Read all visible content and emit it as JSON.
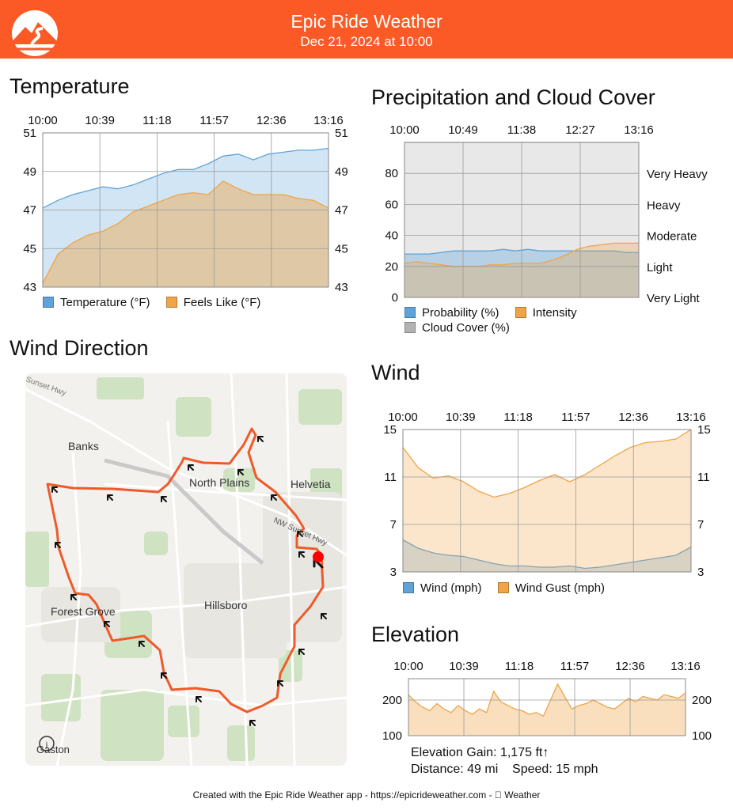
{
  "header": {
    "title": "Epic Ride Weather",
    "date": "Dec 21, 2024 at 10:00",
    "background": "#fb5a26"
  },
  "sections": {
    "temperature": "Temperature",
    "precipitation": "Precipitation and Cloud Cover",
    "wind_direction": "Wind Direction",
    "wind": "Wind",
    "elevation": "Elevation"
  },
  "time_ticks": [
    "10:00",
    "10:39",
    "11:18",
    "11:57",
    "12:36",
    "13:16"
  ],
  "precip_time_ticks": [
    "10:00",
    "10:49",
    "11:38",
    "12:27",
    "13:16"
  ],
  "chart_data": [
    {
      "type": "area",
      "id": "temperature",
      "title": "Temperature",
      "ylim": [
        43,
        51
      ],
      "y_ticks": [
        43,
        45,
        47,
        49,
        51
      ],
      "grid": true,
      "legend": "bottom",
      "series": [
        {
          "name": "Temperature (°F)",
          "color": "#5fa3da",
          "values": [
            47.1,
            47.5,
            47.8,
            48.0,
            48.2,
            48.1,
            48.3,
            48.6,
            48.9,
            49.1,
            49.1,
            49.4,
            49.8,
            49.9,
            49.6,
            49.9,
            50.0,
            50.1,
            50.1,
            50.2
          ]
        },
        {
          "name": "Feels Like (°F)",
          "color": "#f0a447",
          "values": [
            43.2,
            44.7,
            45.3,
            45.7,
            45.9,
            46.3,
            46.9,
            47.2,
            47.5,
            47.8,
            47.9,
            47.8,
            48.5,
            48.1,
            47.8,
            47.8,
            47.8,
            47.6,
            47.5,
            47.1
          ]
        }
      ]
    },
    {
      "type": "area",
      "id": "precipitation",
      "title": "Precipitation and Cloud Cover",
      "ylim": [
        0,
        100
      ],
      "y_ticks": [
        0,
        20,
        40,
        60,
        80
      ],
      "right_labels": [
        "Very Light",
        "Light",
        "Moderate",
        "Heavy",
        "Very Heavy"
      ],
      "grid": true,
      "legend": "bottom",
      "series": [
        {
          "name": "Probability (%)",
          "color": "#5fa3da",
          "values": [
            28,
            28,
            28,
            29,
            30,
            30,
            30,
            30,
            31,
            30,
            31,
            30,
            30,
            30,
            30,
            30,
            30,
            30,
            29,
            29
          ]
        },
        {
          "name": "Intensity",
          "color": "#f0a447",
          "values": [
            22,
            23,
            22,
            21,
            20,
            20,
            20,
            21,
            21,
            22,
            22,
            22,
            24,
            27,
            31,
            33,
            34,
            35,
            35,
            35
          ]
        },
        {
          "name": "Cloud Cover (%)",
          "color": "#b3b3b3",
          "values": [
            100,
            100,
            100,
            100,
            100,
            100,
            100,
            100,
            100,
            100,
            100,
            100,
            100,
            100,
            100,
            100,
            100,
            100,
            100,
            100
          ]
        }
      ]
    },
    {
      "type": "area",
      "id": "wind",
      "title": "Wind",
      "ylim": [
        3,
        15
      ],
      "y_ticks": [
        3,
        7,
        11,
        15
      ],
      "grid": true,
      "legend": "bottom",
      "series": [
        {
          "name": "Wind (mph)",
          "color": "#5fa3da",
          "values": [
            5.7,
            5.0,
            4.6,
            4.4,
            4.3,
            4.0,
            3.7,
            3.5,
            3.5,
            3.4,
            3.4,
            3.5,
            3.3,
            3.4,
            3.6,
            3.8,
            4.0,
            4.2,
            4.4,
            5.1
          ]
        },
        {
          "name": "Wind Gust (mph)",
          "color": "#f0a447",
          "values": [
            13.5,
            11.8,
            10.9,
            11.1,
            10.6,
            9.8,
            9.3,
            9.6,
            10.1,
            10.7,
            11.2,
            10.6,
            11.2,
            12.0,
            12.8,
            13.5,
            13.9,
            14.0,
            14.2,
            15.0
          ]
        }
      ]
    },
    {
      "type": "area",
      "id": "elevation",
      "title": "Elevation",
      "ylim": [
        100,
        260
      ],
      "y_ticks": [
        100,
        200
      ],
      "grid": true,
      "series": [
        {
          "name": "Elevation",
          "color": "#f0a447",
          "values": [
            215,
            195,
            180,
            170,
            190,
            175,
            165,
            185,
            170,
            160,
            175,
            165,
            225,
            195,
            185,
            175,
            170,
            160,
            165,
            155,
            200,
            245,
            210,
            175,
            185,
            190,
            200,
            190,
            180,
            175,
            190,
            205,
            195,
            210,
            205,
            200,
            215,
            210,
            205,
            220
          ]
        }
      ]
    }
  ],
  "stats": {
    "elevation_gain": "Elevation Gain: 1,175 ft↑",
    "distance": "Distance: 49 mi",
    "speed": "Speed: 15 mph"
  },
  "map": {
    "labels": {
      "sunset_hwy": "Sunset Hwy",
      "banks": "Banks",
      "north_plains": "North Plains",
      "helvetia": "Helvetia",
      "nw_sunset_hwy": "NW Sunset Hwy",
      "forest_grove": "Forest Grove",
      "hillsboro": "Hillsboro",
      "gaston": "Gaston"
    },
    "route_color": "#ef5a2a",
    "start_marker_color": "#ff0000"
  },
  "footer": "Created with the Epic Ride Weather app - https://epicrideweather.com -  Weather"
}
